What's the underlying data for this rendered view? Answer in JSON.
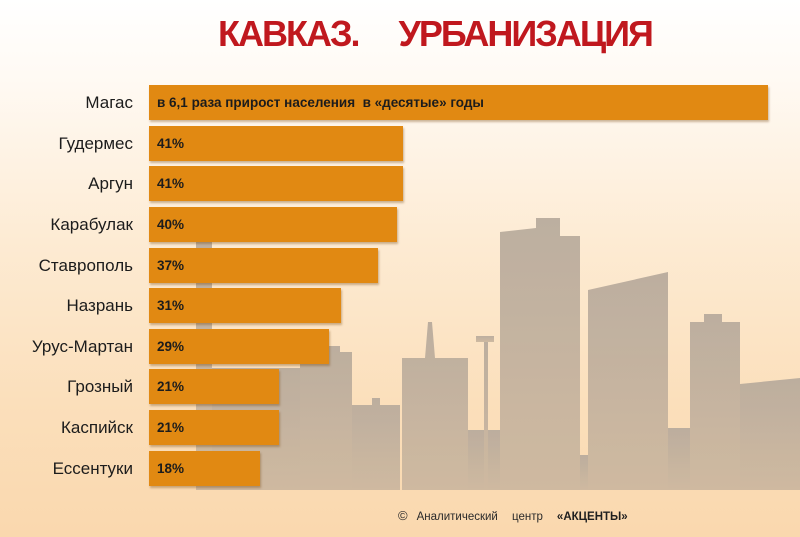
{
  "chart_data": {
    "type": "bar",
    "orientation": "horizontal",
    "title": "КАВКАЗ.     УРБАНИЗАЦИЯ",
    "xlabel": "",
    "ylabel": "",
    "categories": [
      "Магас",
      "Гудермес",
      "Аргун",
      "Карабулак",
      "Ставрополь",
      "Назрань",
      "Урус-Мартан",
      "Грозный",
      "Каспийск",
      "Ессентуки"
    ],
    "values": [
      null,
      41,
      41,
      40,
      37,
      31,
      29,
      21,
      21,
      18
    ],
    "data_labels": [
      "в 6,1 раза прирост населения  в «десятые» годы",
      "41%",
      "41%",
      "40%",
      "37%",
      "31%",
      "29%",
      "21%",
      "21%",
      "18%"
    ],
    "xlim": [
      0,
      100
    ],
    "grid": false,
    "legend": "none"
  },
  "footer": {
    "copyright": "©",
    "text": "Аналитический центр",
    "brand": "«АКЦЕНТЫ»"
  },
  "colors": {
    "title": "#C0181E",
    "bar": "#E18912"
  }
}
